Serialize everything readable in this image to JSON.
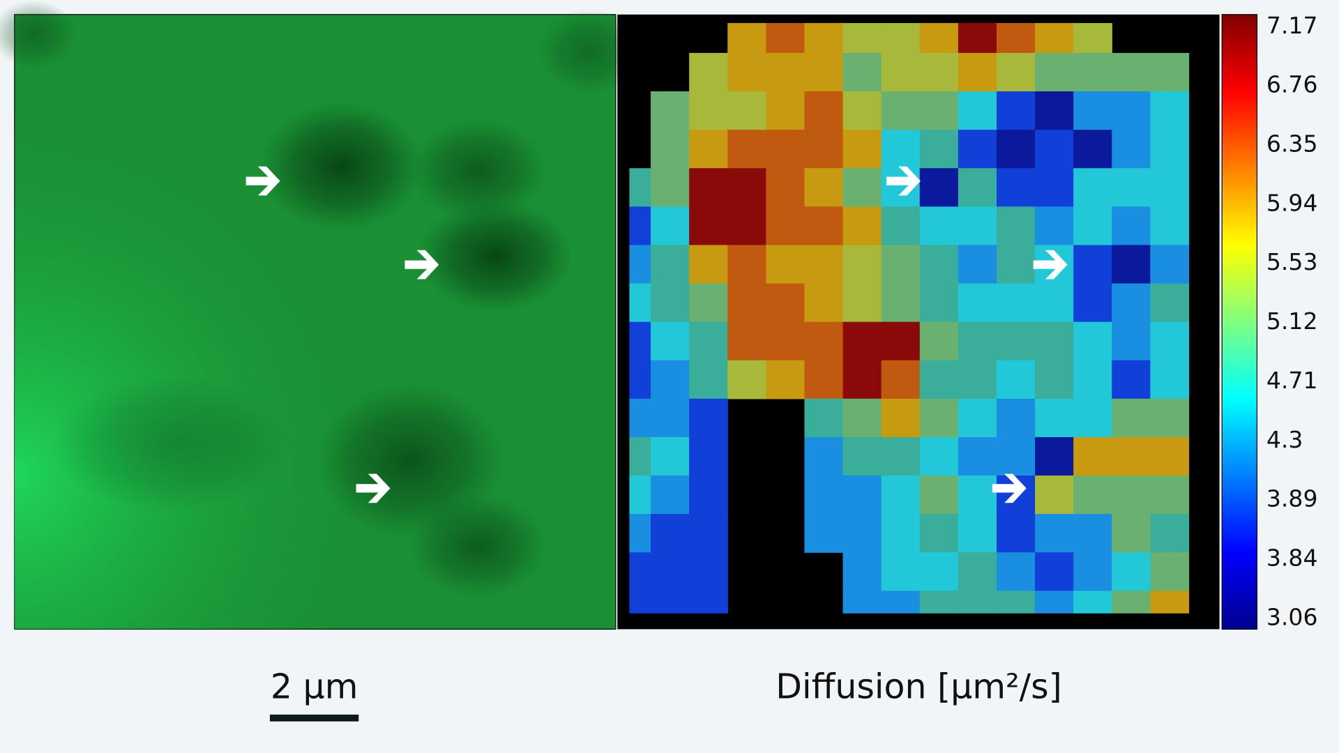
{
  "colorbar": {
    "labels": [
      "7.17",
      "6.76",
      "6.35",
      "5.94",
      "5.53",
      "5.12",
      "4.71",
      "4.3",
      "3.89",
      "3.84",
      "3.06"
    ]
  },
  "scale_bar": {
    "label": "2 µm"
  },
  "diffusion_label": "Diffusion [µm²/s]"
}
